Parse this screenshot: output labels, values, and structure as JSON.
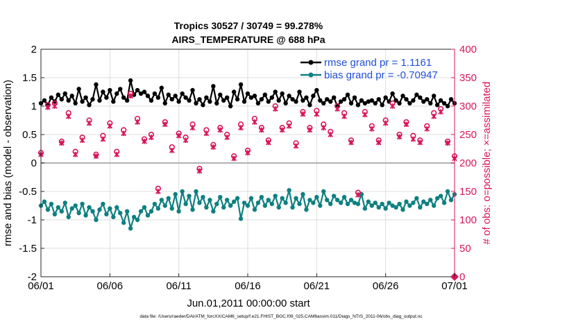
{
  "chart_data": {
    "type": "line",
    "title": "Tropics 30527 / 30749 = 99.278%",
    "subtitle": "AIRS_TEMPERATURE @ 688 hPa",
    "xlabel": "Jun.01,2011 00:00:00 start",
    "ylabel": "rmse and bias (model - observation)",
    "y2label": "# of obs: o=possible; ×=assimilated",
    "footer": "data file: /Users/raeder/DAI/ATM_forcXX/CAM6_setup/f.e21.FHIST_BGC.f09_025.CAM6assim.011/Diags_NTrS_2011-06/obs_diag_output.nc",
    "xlim": [
      0,
      30
    ],
    "ylim": [
      -2,
      2
    ],
    "y2lim": [
      0,
      400
    ],
    "xticks": [
      0,
      5,
      10,
      15,
      20,
      25,
      30
    ],
    "xticklabels": [
      "06/01",
      "06/06",
      "06/11",
      "06/16",
      "06/21",
      "06/26",
      "07/01"
    ],
    "yticks": [
      -2,
      -1.5,
      -1,
      -0.5,
      0,
      0.5,
      1,
      1.5,
      2
    ],
    "yticklabels": [
      "-2",
      "-1.5",
      "-1",
      "-0.5",
      "0",
      "0.5",
      "1",
      "1.5",
      "2"
    ],
    "y2ticks": [
      0,
      50,
      100,
      150,
      200,
      250,
      300,
      350,
      400
    ],
    "y2ticklabels": [
      "0",
      "50",
      "100",
      "150",
      "200",
      "250",
      "300",
      "350",
      "400"
    ],
    "grid": true,
    "legend_position": "top-right",
    "legend": [
      "rmse grand pr = 1.1161",
      "bias grand pr = -0.70947"
    ],
    "colors": {
      "rmse": "#000000",
      "bias": "#0e8080",
      "obs": "#d8145a",
      "zero_line": "#b0b0b0",
      "legend_text": "#1f4fd8",
      "grid": "#dcdcdc"
    },
    "series": [
      {
        "name": "rmse",
        "axis": "left",
        "x": [
          0,
          0.25,
          0.5,
          0.75,
          1,
          1.25,
          1.5,
          1.75,
          2,
          2.25,
          2.5,
          2.75,
          3,
          3.25,
          3.5,
          3.75,
          4,
          4.25,
          4.5,
          4.75,
          5,
          5.25,
          5.5,
          5.75,
          6,
          6.25,
          6.5,
          6.75,
          7,
          7.25,
          7.5,
          7.75,
          8,
          8.25,
          8.5,
          8.75,
          9,
          9.25,
          9.5,
          9.75,
          10,
          10.25,
          10.5,
          10.75,
          11,
          11.25,
          11.5,
          11.75,
          12,
          12.25,
          12.5,
          12.75,
          13,
          13.25,
          13.5,
          13.75,
          14,
          14.25,
          14.5,
          14.75,
          15,
          15.25,
          15.5,
          15.75,
          16,
          16.25,
          16.5,
          16.75,
          17,
          17.25,
          17.5,
          17.75,
          18,
          18.25,
          18.5,
          18.75,
          19,
          19.25,
          19.5,
          19.75,
          20,
          20.25,
          20.5,
          20.75,
          21,
          21.25,
          21.5,
          21.75,
          22,
          22.25,
          22.5,
          22.75,
          23,
          23.25,
          23.5,
          23.75,
          24,
          24.25,
          24.5,
          24.75,
          25,
          25.25,
          25.5,
          25.75,
          26,
          26.25,
          26.5,
          26.75,
          27,
          27.25,
          27.5,
          27.75,
          28,
          28.25,
          28.5,
          28.75,
          29,
          29.25,
          29.5,
          29.75,
          30
        ],
        "values": [
          1.05,
          1.1,
          1.02,
          1.15,
          1.08,
          1.2,
          1.12,
          1.22,
          1.1,
          1.18,
          1.05,
          1.3,
          1.08,
          1.15,
          1.02,
          1.12,
          1.38,
          1.1,
          1.25,
          1.15,
          1.28,
          1.08,
          1.22,
          1.3,
          1.15,
          1.1,
          1.45,
          1.2,
          1.28,
          1.22,
          1.25,
          1.18,
          1.1,
          1.22,
          1.15,
          1.32,
          1.05,
          1.2,
          1.12,
          1.18,
          1.08,
          1.22,
          1.15,
          1.1,
          1.28,
          1.05,
          1.12,
          1.02,
          1.15,
          1.08,
          1.35,
          1.05,
          1.2,
          1.1,
          1.15,
          1.0,
          1.25,
          1.12,
          1.38,
          1.08,
          1.22,
          1.15,
          1.18,
          1.05,
          1.12,
          1.2,
          1.08,
          1.15,
          1.25,
          1.1,
          1.22,
          1.05,
          1.18,
          1.12,
          1.08,
          1.25,
          1.1,
          1.15,
          1.02,
          1.18,
          1.28,
          1.1,
          1.05,
          1.12,
          1.08,
          1.15,
          1.0,
          1.08,
          1.12,
          1.2,
          1.05,
          1.15,
          1.02,
          1.1,
          1.05,
          1.08,
          1.1,
          1.05,
          1.12,
          1.02,
          1.15,
          1.08,
          1.22,
          1.1,
          1.05,
          1.18,
          1.12,
          1.05,
          1.1,
          1.2,
          1.15,
          1.08,
          1.12,
          1.05,
          1.18,
          1.02,
          1.1,
          1.05,
          1.0,
          1.12,
          1.05
        ]
      },
      {
        "name": "bias",
        "axis": "left",
        "x": [
          0,
          0.25,
          0.5,
          0.75,
          1,
          1.25,
          1.5,
          1.75,
          2,
          2.25,
          2.5,
          2.75,
          3,
          3.25,
          3.5,
          3.75,
          4,
          4.25,
          4.5,
          4.75,
          5,
          5.25,
          5.5,
          5.75,
          6,
          6.25,
          6.5,
          6.75,
          7,
          7.25,
          7.5,
          7.75,
          8,
          8.25,
          8.5,
          8.75,
          9,
          9.25,
          9.5,
          9.75,
          10,
          10.25,
          10.5,
          10.75,
          11,
          11.25,
          11.5,
          11.75,
          12,
          12.25,
          12.5,
          12.75,
          13,
          13.25,
          13.5,
          13.75,
          14,
          14.25,
          14.5,
          14.75,
          15,
          15.25,
          15.5,
          15.75,
          16,
          16.25,
          16.5,
          16.75,
          17,
          17.25,
          17.5,
          17.75,
          18,
          18.25,
          18.5,
          18.75,
          19,
          19.25,
          19.5,
          19.75,
          20,
          20.25,
          20.5,
          20.75,
          21,
          21.25,
          21.5,
          21.75,
          22,
          22.25,
          22.5,
          22.75,
          23,
          23.25,
          23.5,
          23.75,
          24,
          24.25,
          24.5,
          24.75,
          25,
          25.25,
          25.5,
          25.75,
          26,
          26.25,
          26.5,
          26.75,
          27,
          27.25,
          27.5,
          27.75,
          28,
          28.25,
          28.5,
          28.75,
          29,
          29.25,
          29.5,
          29.75,
          30
        ],
        "values": [
          -0.75,
          -0.68,
          -0.82,
          -0.72,
          -0.9,
          -0.78,
          -0.85,
          -0.7,
          -0.95,
          -0.8,
          -0.75,
          -0.88,
          -0.72,
          -0.92,
          -0.78,
          -0.85,
          -1.0,
          -0.82,
          -0.72,
          -0.9,
          -0.8,
          -0.95,
          -0.78,
          -0.88,
          -1.05,
          -0.85,
          -1.15,
          -0.95,
          -1.0,
          -0.85,
          -0.78,
          -0.92,
          -0.85,
          -0.72,
          -0.8,
          -0.65,
          -0.75,
          -0.62,
          -0.8,
          -0.55,
          -0.85,
          -0.5,
          -0.72,
          -0.58,
          -0.82,
          -0.5,
          -0.7,
          -0.6,
          -0.78,
          -0.65,
          -0.85,
          -0.72,
          -0.6,
          -0.78,
          -0.65,
          -0.75,
          -0.68,
          -0.62,
          -0.98,
          -0.7,
          -0.75,
          -0.62,
          -0.82,
          -0.7,
          -0.6,
          -0.75,
          -0.65,
          -0.72,
          -0.58,
          -0.78,
          -0.62,
          -0.7,
          -0.48,
          -0.78,
          -0.62,
          -0.72,
          -0.55,
          -0.82,
          -0.65,
          -0.7,
          -0.6,
          -0.75,
          -0.5,
          -0.65,
          -0.72,
          -0.58,
          -0.65,
          -0.7,
          -0.6,
          -0.72,
          -0.65,
          -0.7,
          -0.72,
          -0.55,
          -0.8,
          -0.68,
          -0.75,
          -0.7,
          -0.78,
          -0.72,
          -0.8,
          -0.7,
          -0.75,
          -0.78,
          -0.72,
          -0.82,
          -0.68,
          -0.75,
          -0.7,
          -0.62,
          -0.78,
          -0.68,
          -0.72,
          -0.65,
          -0.75,
          -0.62,
          -0.58,
          -0.7,
          -0.5,
          -0.65,
          -0.55
        ]
      },
      {
        "name": "obs possible",
        "axis": "right",
        "marker": "o",
        "x": [
          0,
          0.5,
          1,
          1.5,
          2,
          2.5,
          3,
          3.5,
          4,
          4.5,
          5,
          5.5,
          6,
          6.5,
          7,
          7.5,
          8,
          8.5,
          9,
          9.5,
          10,
          10.5,
          11,
          11.5,
          12,
          12.5,
          13,
          13.5,
          14,
          14.5,
          15,
          15.5,
          16,
          16.5,
          17,
          17.5,
          18,
          18.5,
          19,
          19.5,
          20,
          20.5,
          21,
          21.5,
          22,
          22.5,
          23,
          23.5,
          24,
          24.5,
          25,
          25.5,
          26,
          26.5,
          27,
          27.5,
          28,
          28.5,
          29,
          29.5,
          30
        ],
        "values": [
          218,
          302,
          305,
          238,
          288,
          220,
          245,
          275,
          215,
          248,
          270,
          220,
          258,
          322,
          278,
          242,
          250,
          155,
          272,
          228,
          252,
          245,
          268,
          190,
          258,
          232,
          262,
          250,
          212,
          268,
          222,
          278,
          262,
          240,
          300,
          262,
          270,
          235,
          290,
          262,
          292,
          268,
          255,
          300,
          288,
          240,
          148,
          290,
          265,
          240,
          275,
          305,
          250,
          272,
          248,
          240,
          265,
          288,
          295,
          238,
          212
        ]
      },
      {
        "name": "obs assimilated",
        "axis": "right",
        "marker": "x",
        "x": [
          0,
          0.5,
          1,
          1.5,
          2,
          2.5,
          3,
          3.5,
          4,
          4.5,
          5,
          5.5,
          6,
          6.5,
          7,
          7.5,
          8,
          8.5,
          9,
          9.5,
          10,
          10.5,
          11,
          11.5,
          12,
          12.5,
          13,
          13.5,
          14,
          14.5,
          15,
          15.5,
          16,
          16.5,
          17,
          17.5,
          18,
          18.5,
          19,
          19.5,
          20,
          20.5,
          21,
          21.5,
          22,
          22.5,
          23,
          23.5,
          24,
          24.5,
          25,
          25.5,
          26,
          26.5,
          27,
          27.5,
          28,
          28.5,
          29,
          29.5,
          30
        ],
        "values": [
          215,
          298,
          300,
          235,
          282,
          215,
          240,
          270,
          212,
          242,
          265,
          215,
          252,
          318,
          272,
          238,
          245,
          150,
          268,
          222,
          248,
          240,
          262,
          186,
          252,
          228,
          258,
          245,
          208,
          262,
          218,
          272,
          258,
          236,
          295,
          258,
          265,
          230,
          286,
          258,
          286,
          262,
          250,
          295,
          282,
          236,
          144,
          285,
          260,
          236,
          270,
          300,
          246,
          268,
          242,
          236,
          260,
          282,
          290,
          235,
          208
        ]
      }
    ]
  }
}
